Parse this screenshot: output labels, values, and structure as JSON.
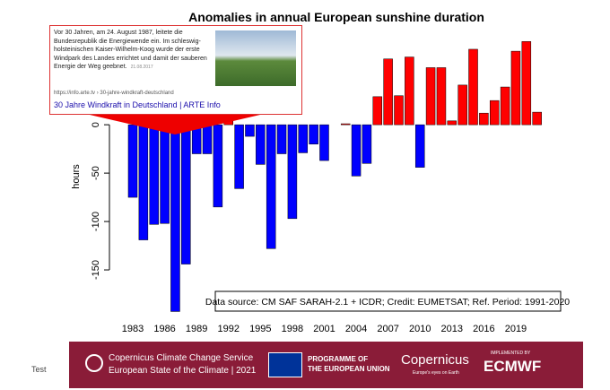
{
  "chart_data": {
    "type": "bar",
    "title": "Anomalies in annual European sunshine duration",
    "y_label": "hours",
    "annotation": "Data source: CM SAF SARAH-2.1 + ICDR;  Credit: EUMETSAT;  Ref. Period: 1991-2020",
    "categories": [
      "1983",
      null,
      null,
      "1986",
      null,
      null,
      "1989",
      null,
      null,
      "1992",
      null,
      null,
      "1995",
      null,
      null,
      "1998",
      null,
      null,
      "2001",
      null,
      null,
      "2004",
      null,
      null,
      "2007",
      null,
      null,
      "2010",
      null,
      null,
      "2013",
      null,
      null,
      "2016",
      null,
      null,
      "2019",
      null,
      null
    ],
    "values": [
      -75,
      -119,
      -103,
      -102,
      -193,
      -144,
      -30,
      -30,
      -85,
      10,
      -66,
      -12,
      -41,
      -128,
      -30,
      -97,
      -29,
      -20,
      -37,
      0,
      1,
      -53,
      -40,
      29,
      68,
      30,
      70,
      -44,
      59,
      59,
      4,
      41,
      78,
      12,
      25,
      39,
      76,
      86,
      13
    ],
    "positive_color": "#ff0000",
    "negative_color": "#0000ff",
    "ylim": [
      -200,
      90
    ],
    "yticks": [
      -150,
      -100,
      -50,
      0
    ]
  },
  "popup": {
    "text": [
      "Vor 30 Jahren, am 24. August 1987, leitete die",
      "Bundesrepublik die Energiewende ein. Im schleswig-",
      "holsteinischen Kaiser-Wilhelm-Koog wurde der erste",
      "Windpark des Landes errichtet und damit der sauberen",
      "Energie der Weg geebnet."
    ],
    "date": "21.08.2017",
    "url": "https://info.arte.tv › 30-jahre-windkraft-deutschland",
    "link": "30 Jahre Windkraft in Deutschland | ARTE Info"
  },
  "side_label": "Test",
  "footer": {
    "service": "Copernicus Climate Change Service",
    "report": "European State of the Climate | 2021",
    "eu_line1": "PROGRAMME OF",
    "eu_line2": "THE EUROPEAN UNION",
    "copernicus": "Copernicus",
    "copernicus_tagline": "Europe's eyes on Earth",
    "implemented": "IMPLEMENTED BY",
    "ecmwf": "ECMWF"
  }
}
